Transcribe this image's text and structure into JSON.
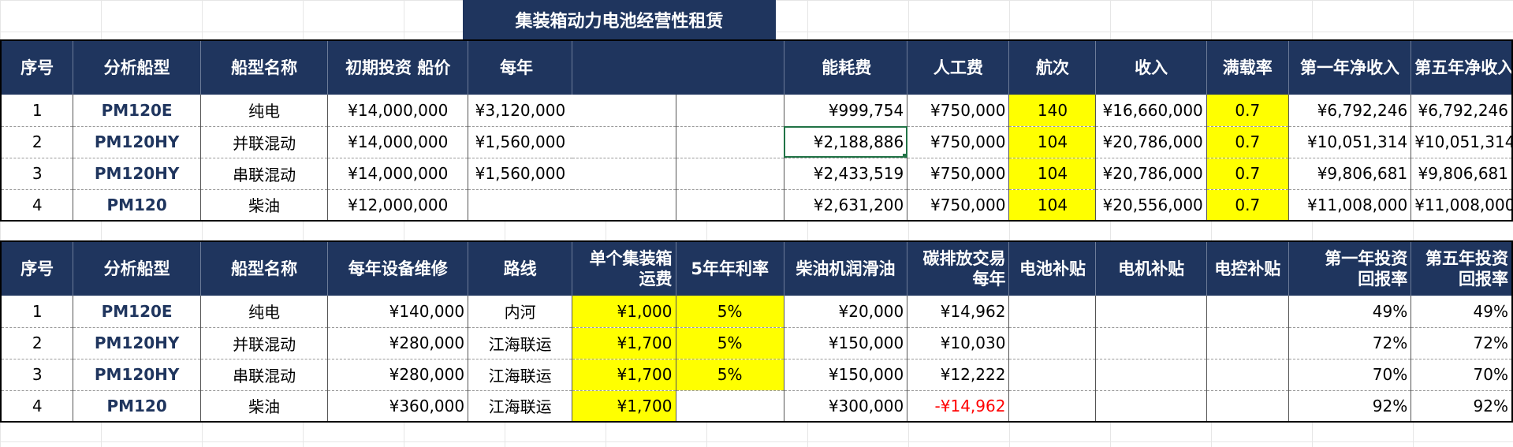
{
  "title": "集装箱动力电池经营性租赁",
  "table1": {
    "headers": [
      "序号",
      "分析船型",
      "船型名称",
      "初期投资  船价",
      "每年",
      "",
      "",
      "能耗费",
      "人工费",
      "航次",
      "收入",
      "满载率",
      "第一年净收入",
      "第五年净收入"
    ],
    "rows": [
      [
        "1",
        "PM120E",
        "纯电",
        "¥14,000,000",
        "¥3,120,000",
        "",
        "",
        "¥999,754",
        "¥750,000",
        "140",
        "¥16,660,000",
        "0.7",
        "¥6,792,246",
        "¥6,792,246"
      ],
      [
        "2",
        "PM120HY",
        "并联混动",
        "¥14,000,000",
        "¥1,560,000",
        "",
        "",
        "¥2,188,886",
        "¥750,000",
        "104",
        "¥20,786,000",
        "0.7",
        "¥10,051,314",
        "¥10,051,314"
      ],
      [
        "3",
        "PM120HY",
        "串联混动",
        "¥14,000,000",
        "¥1,560,000",
        "",
        "",
        "¥2,433,519",
        "¥750,000",
        "104",
        "¥20,786,000",
        "0.7",
        "¥9,806,681",
        "¥9,806,681"
      ],
      [
        "4",
        "PM120",
        "柴油",
        "¥12,000,000",
        "",
        "",
        "",
        "¥2,631,200",
        "¥750,000",
        "104",
        "¥20,556,000",
        "0.7",
        "¥11,008,000",
        "¥11,008,000"
      ]
    ]
  },
  "table2": {
    "headers": [
      "序号",
      "分析船型",
      "船型名称",
      "每年设备维修",
      "路线",
      "单个集装箱\n运费",
      "5年年利率",
      "柴油机润滑油",
      "碳排放交易\n每年",
      "电池补贴",
      "电机补贴",
      "电控补贴",
      "第一年投资\n回报率",
      "第五年投资\n回报率"
    ],
    "rows": [
      [
        "1",
        "PM120E",
        "纯电",
        "¥140,000",
        "内河",
        "¥1,000",
        "5%",
        "¥20,000",
        "¥14,962",
        "",
        "",
        "",
        "49%",
        "49%"
      ],
      [
        "2",
        "PM120HY",
        "并联混动",
        "¥280,000",
        "江海联运",
        "¥1,700",
        "5%",
        "¥150,000",
        "¥10,030",
        "",
        "",
        "",
        "72%",
        "72%"
      ],
      [
        "3",
        "PM120HY",
        "串联混动",
        "¥280,000",
        "江海联运",
        "¥1,700",
        "5%",
        "¥150,000",
        "¥12,222",
        "",
        "",
        "",
        "70%",
        "70%"
      ],
      [
        "4",
        "PM120",
        "柴油",
        "¥360,000",
        "江海联运",
        "¥1,700",
        "",
        "¥300,000",
        "-¥14,962",
        "",
        "",
        "",
        "92%",
        "92%"
      ]
    ]
  },
  "colors": {
    "header_bg": "#1f355e",
    "highlight": "#ffff00",
    "negative": "#ff0000",
    "selection": "#217346"
  }
}
